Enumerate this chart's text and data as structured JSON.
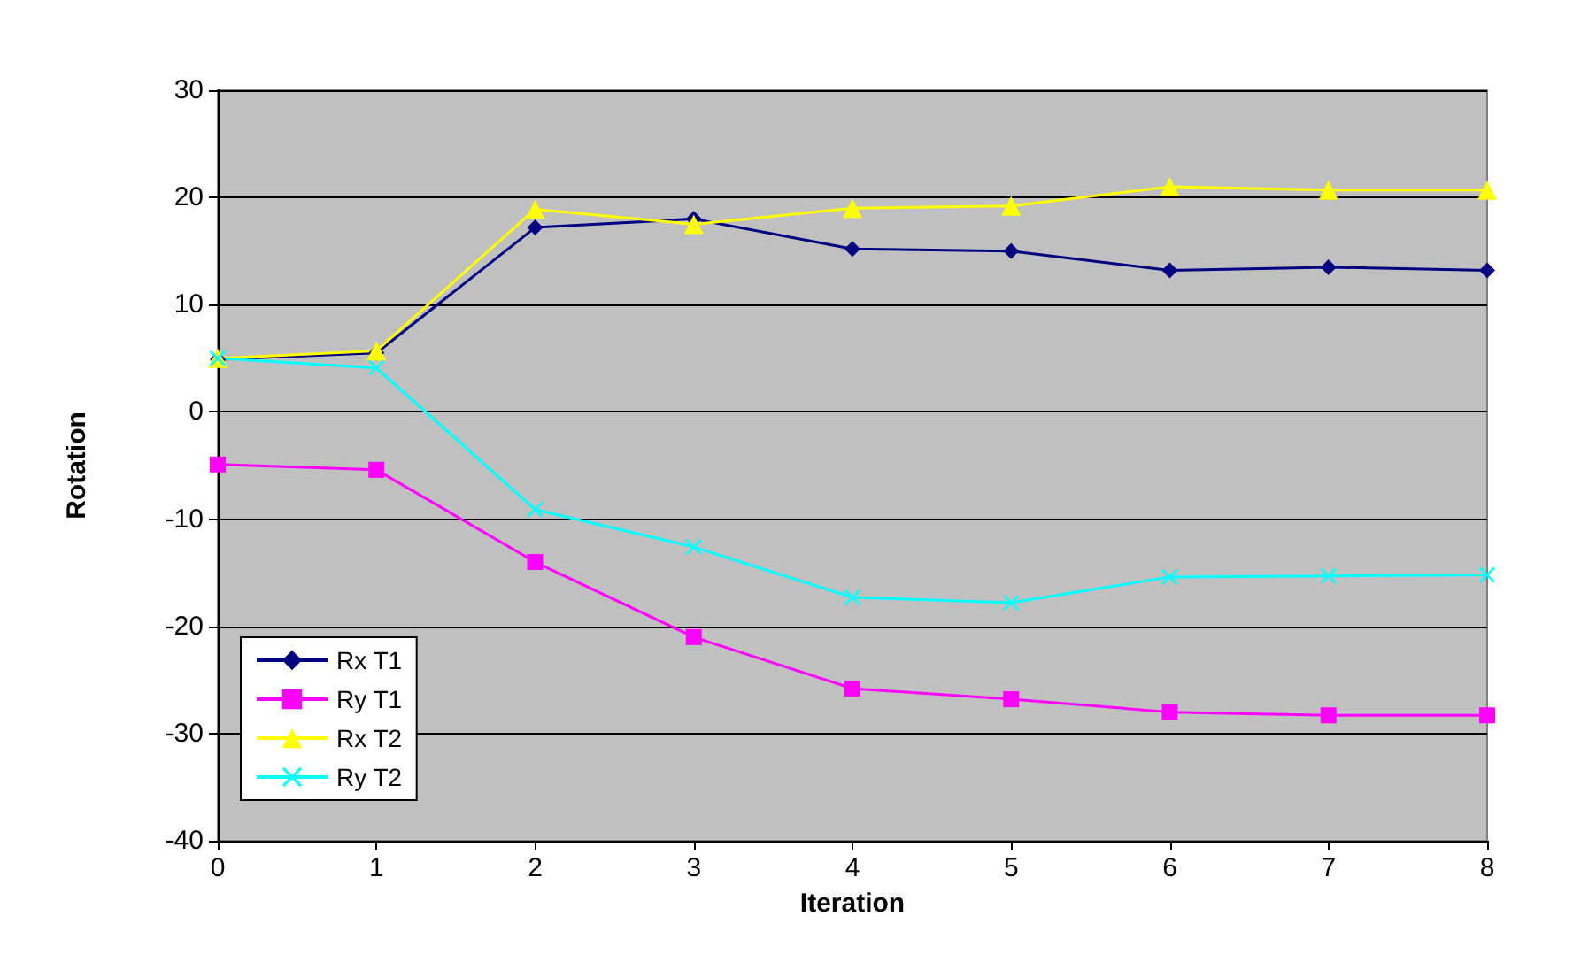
{
  "chart_data": {
    "type": "line",
    "xlabel": "Iteration",
    "ylabel": "Rotation",
    "x": [
      0,
      1,
      2,
      3,
      4,
      5,
      6,
      7,
      8
    ],
    "xlim": [
      0,
      8
    ],
    "xticks": [
      0,
      1,
      2,
      3,
      4,
      5,
      6,
      7,
      8
    ],
    "ylim": [
      -40,
      30
    ],
    "yticks": [
      -40,
      -30,
      -20,
      -10,
      0,
      10,
      20,
      30
    ],
    "grid": "y",
    "legend": "bottom left",
    "series": [
      {
        "name": "Rx T1",
        "color": "#000080",
        "marker": "diamond",
        "values": [
          4.9,
          5.5,
          17.2,
          18,
          15.2,
          15,
          13.2,
          13.5,
          13.2
        ]
      },
      {
        "name": "Ry T1",
        "color": "#ff00ff",
        "marker": "square",
        "values": [
          -4.9,
          -5.4,
          -14,
          -21,
          -25.8,
          -26.8,
          -28,
          -28.3,
          -28.3
        ]
      },
      {
        "name": "Rx T2",
        "color": "#ffff00",
        "marker": "triangle",
        "values": [
          5,
          5.7,
          18.9,
          17.5,
          19,
          19.2,
          21,
          20.7,
          20.7
        ]
      },
      {
        "name": "Ry T2",
        "color": "#00ffff",
        "marker": "cross",
        "values": [
          5,
          4.1,
          -9.1,
          -12.6,
          -17.3,
          -17.8,
          -15.4,
          -15.3,
          -15.2
        ]
      }
    ]
  }
}
